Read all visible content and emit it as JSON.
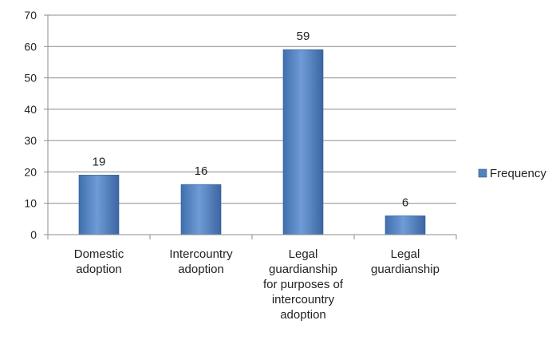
{
  "chart_data": {
    "type": "bar",
    "title": "",
    "xlabel": "",
    "ylabel": "",
    "categories": [
      [
        "Domestic",
        "adoption"
      ],
      [
        "Intercountry",
        "adoption"
      ],
      [
        "Legal",
        "guardianship",
        "for purposes of",
        "intercountry",
        "adoption"
      ],
      [
        "Legal",
        "guardianship"
      ]
    ],
    "series": [
      {
        "name": "Frequency",
        "values": [
          19,
          16,
          59,
          6
        ],
        "color": "#4f81bd"
      }
    ],
    "data_labels": true,
    "ylim": [
      0,
      70
    ],
    "yticks": [
      0,
      10,
      20,
      30,
      40,
      50,
      60,
      70
    ],
    "grid": true,
    "legend_position": "right"
  }
}
